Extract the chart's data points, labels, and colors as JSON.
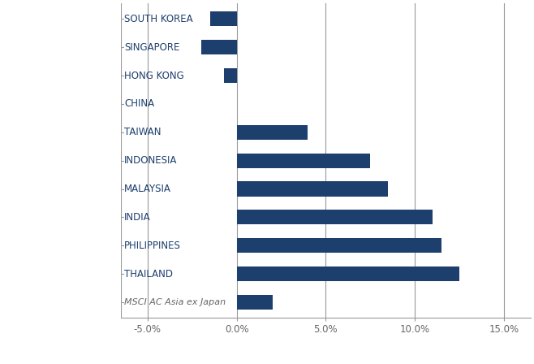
{
  "categories": [
    "MSCI AC Asia ex Japan",
    "THAILAND",
    "PHILIPPINES",
    "INDIA",
    "MALAYSIA",
    "INDONESIA",
    "TAIWAN",
    "CHINA",
    "HONG KONG",
    "SINGAPORE",
    "SOUTH KOREA"
  ],
  "values": [
    2.0,
    12.5,
    11.5,
    11.0,
    8.5,
    7.5,
    4.0,
    0.0,
    -0.7,
    -2.0,
    -1.5
  ],
  "bar_color": "#1d3f6e",
  "xlim": [
    -6.5,
    16.5
  ],
  "xticks": [
    -5,
    0,
    5,
    10,
    15
  ],
  "xtick_labels": [
    "-5.0%",
    "0.0%",
    "5.0%",
    "10.0%",
    "15.0%"
  ],
  "bar_height": 0.52,
  "grid_color": "#999999",
  "axis_label_color": "#666666",
  "category_label_color": "#1d3f6e",
  "msci_label_color": "#666666",
  "background_color": "#ffffff",
  "figsize": [
    6.58,
    4.48
  ],
  "dpi": 100
}
